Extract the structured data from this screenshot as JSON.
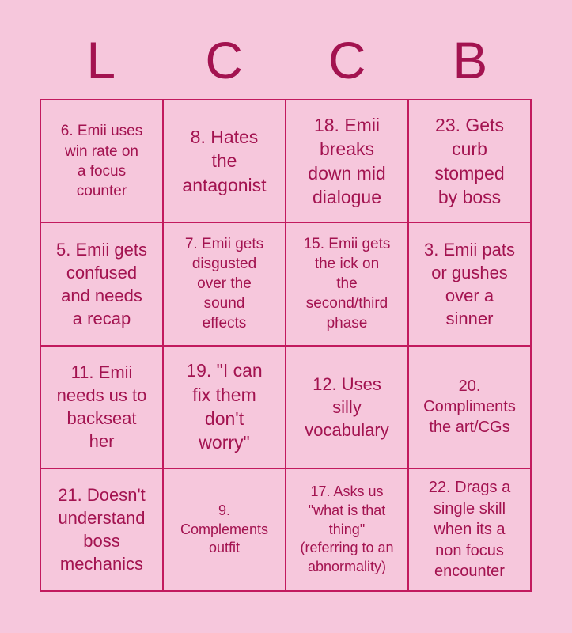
{
  "card": {
    "colors": {
      "background": "#f6c7dc",
      "border": "#c21a5e",
      "text": "#a31350"
    },
    "title_letters": [
      "L",
      "C",
      "C",
      "B"
    ],
    "cells": [
      "6. Emii uses\nwin rate on\na focus\ncounter",
      "8. Hates\nthe\nantagonist",
      "18. Emii\nbreaks\ndown mid\ndialogue",
      "23. Gets\ncurb\nstomped\nby boss",
      "5. Emii gets\nconfused\nand needs\na recap",
      "7. Emii gets\ndisgusted\nover the\nsound\neffects",
      "15. Emii gets\nthe ick on\nthe\nsecond/third\nphase",
      "3. Emii pats\nor gushes\nover a\nsinner",
      "11. Emii\nneeds us to\nbackseat\nher",
      "19. \"I can\nfix them\ndon't\nworry\"",
      "12. Uses\nsilly\nvocabulary",
      "20.\nCompliments\nthe art/CGs",
      "21. Doesn't\nunderstand\nboss\nmechanics",
      "9.\nComplements\noutfit",
      "17. Asks us\n\"what is that\nthing\"\n(referring to an\nabnormality)",
      "22. Drags a\nsingle skill\nwhen its a\nnon focus\nencounter"
    ]
  }
}
